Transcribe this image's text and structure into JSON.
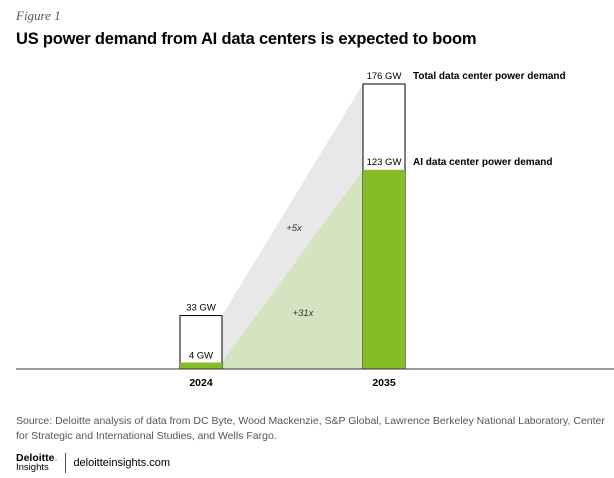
{
  "figure_label": "Figure 1",
  "title": "US power demand from AI data centers is expected to boom",
  "chart_data": {
    "type": "bar",
    "categories": [
      "2024",
      "2035"
    ],
    "series": [
      {
        "name": "Total data center power demand",
        "values": [
          33,
          176
        ],
        "labels": [
          "33 GW",
          "176 GW"
        ]
      },
      {
        "name": "AI data center power demand",
        "values": [
          4,
          123
        ],
        "labels": [
          "4 GW",
          "123 GW"
        ]
      }
    ],
    "annotations": [
      "+5x",
      "+31x"
    ],
    "ylim": [
      0,
      176
    ],
    "unit": "GW",
    "colors": {
      "total_fill": "#ffffff",
      "total_stroke": "#000000",
      "ai": "#86bc25",
      "total_band": "#e8e8e8",
      "ai_band": "#d4e3c0"
    }
  },
  "source": "Source: Deloitte analysis of data from DC Byte, Wood Mackenzie, S&P Global, Lawrence Berkeley National Laboratory, Center for Strategic and International Studies, and Wells Fargo.",
  "footer": {
    "brand": "Deloitte",
    "brand_dot": ".",
    "brand_sub": "Insights",
    "site": "deloitteinsights.com"
  }
}
